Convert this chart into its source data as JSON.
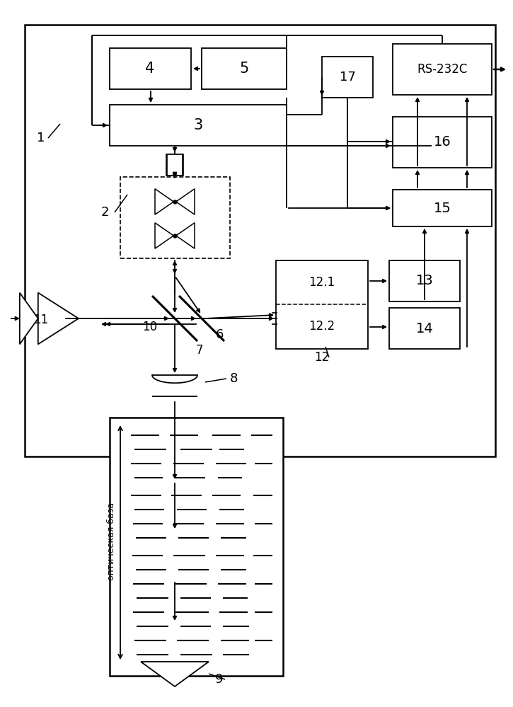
{
  "bg_color": "#ffffff",
  "fig_w": 7.25,
  "fig_h": 9.99,
  "dpi": 100
}
